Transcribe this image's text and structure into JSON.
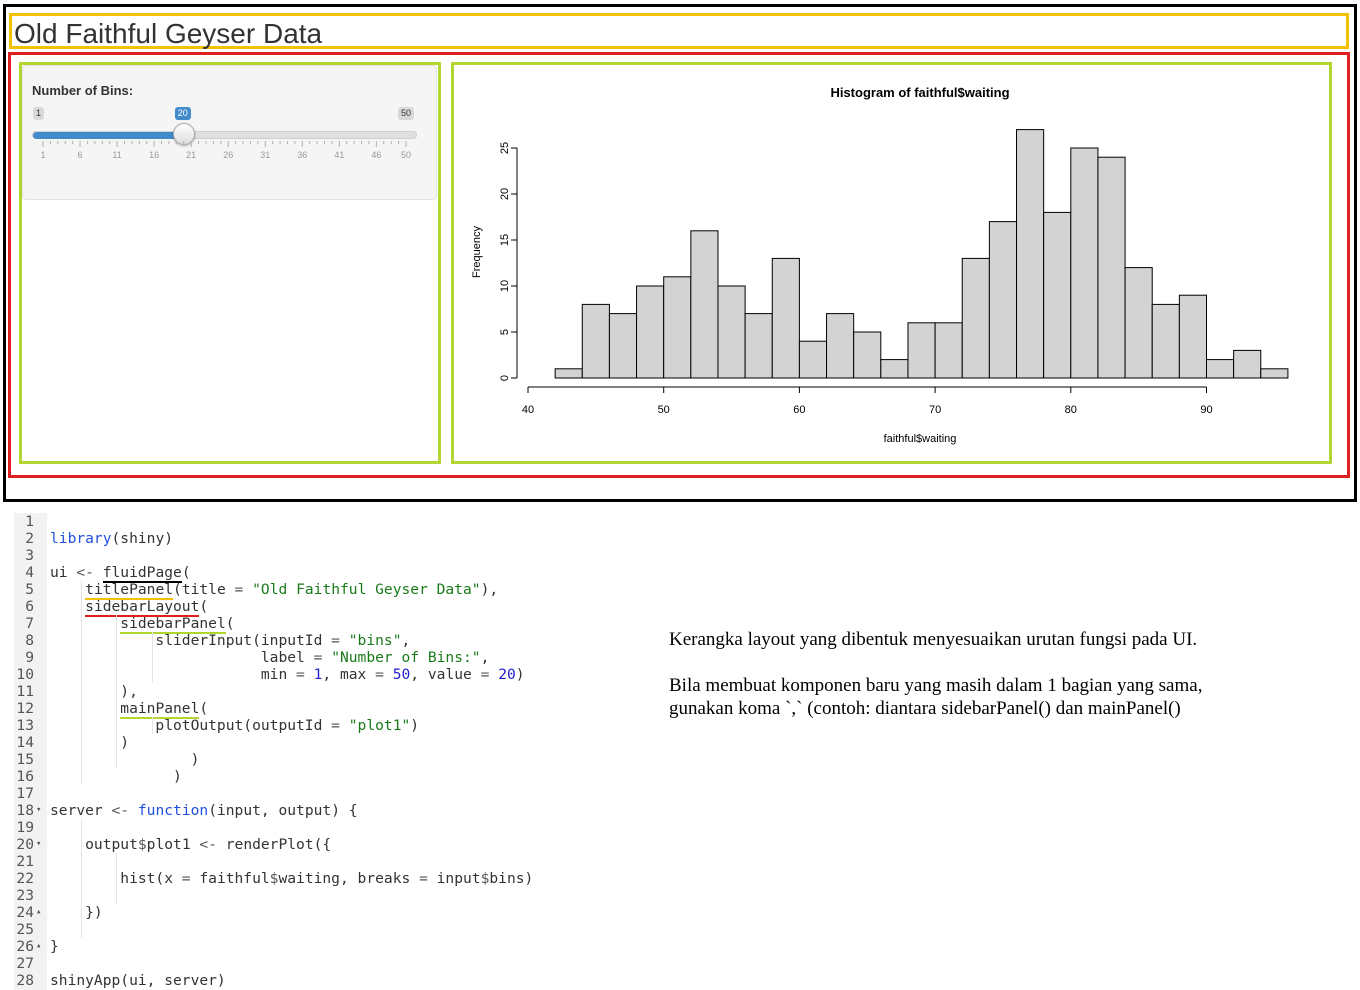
{
  "app": {
    "title": "Old Faithful Geyser Data"
  },
  "sidebar": {
    "slider": {
      "label": "Number of Bins:",
      "min": 1,
      "max": 50,
      "value": 20,
      "min_label": "1",
      "max_label": "50",
      "value_label": "20",
      "tick_labels": [
        "1",
        "6",
        "11",
        "16",
        "21",
        "26",
        "31",
        "36",
        "41",
        "46",
        "50"
      ]
    }
  },
  "chart_data": {
    "type": "bar",
    "title": "Histogram of faithful$waiting",
    "xlabel": "faithful$waiting",
    "ylabel": "Frequency",
    "bin_width": 2,
    "bin_start": 42,
    "values": [
      1,
      8,
      7,
      10,
      11,
      16,
      10,
      7,
      13,
      4,
      7,
      5,
      2,
      6,
      6,
      13,
      17,
      27,
      18,
      25,
      24,
      12,
      8,
      9,
      2,
      3,
      1
    ],
    "xlim": [
      40,
      96
    ],
    "ylim": [
      0,
      27
    ],
    "x_ticks": [
      40,
      50,
      60,
      70,
      80,
      90
    ],
    "y_ticks": [
      0,
      5,
      10,
      15,
      20,
      25
    ],
    "bar_color": "#d3d3d3"
  },
  "code": {
    "lines": [
      {
        "n": "1",
        "fold": "",
        "t": ""
      },
      {
        "n": "2",
        "fold": "",
        "t": "library(shiny)"
      },
      {
        "n": "3",
        "fold": "",
        "t": ""
      },
      {
        "n": "4",
        "fold": "",
        "t": "ui <- fluidPage("
      },
      {
        "n": "5",
        "fold": "",
        "t": "    titlePanel(title = \"Old Faithful Geyser Data\"),"
      },
      {
        "n": "6",
        "fold": "",
        "t": "    sidebarLayout("
      },
      {
        "n": "7",
        "fold": "",
        "t": "        sidebarPanel("
      },
      {
        "n": "8",
        "fold": "",
        "t": "            sliderInput(inputId = \"bins\","
      },
      {
        "n": "9",
        "fold": "",
        "t": "                        label = \"Number of Bins:\","
      },
      {
        "n": "10",
        "fold": "",
        "t": "                        min = 1, max = 50, value = 20)"
      },
      {
        "n": "11",
        "fold": "",
        "t": "        ),"
      },
      {
        "n": "12",
        "fold": "",
        "t": "        mainPanel("
      },
      {
        "n": "13",
        "fold": "",
        "t": "            plotOutput(outputId = \"plot1\")"
      },
      {
        "n": "14",
        "fold": "",
        "t": "        )"
      },
      {
        "n": "15",
        "fold": "",
        "t": "                )"
      },
      {
        "n": "16",
        "fold": "",
        "t": "              )"
      },
      {
        "n": "17",
        "fold": "",
        "t": ""
      },
      {
        "n": "18",
        "fold": "▾",
        "t": "server <- function(input, output) {"
      },
      {
        "n": "19",
        "fold": "",
        "t": ""
      },
      {
        "n": "20",
        "fold": "▾",
        "t": "    output$plot1 <- renderPlot({"
      },
      {
        "n": "21",
        "fold": "",
        "t": ""
      },
      {
        "n": "22",
        "fold": "",
        "t": "        hist(x = faithful$waiting, breaks = input$bins)"
      },
      {
        "n": "23",
        "fold": "",
        "t": ""
      },
      {
        "n": "24",
        "fold": "▴",
        "t": "    })"
      },
      {
        "n": "25",
        "fold": "",
        "t": ""
      },
      {
        "n": "26",
        "fold": "▴",
        "t": "}"
      },
      {
        "n": "27",
        "fold": "",
        "t": ""
      },
      {
        "n": "28",
        "fold": "",
        "t": "shinyApp(ui, server)"
      }
    ]
  },
  "notes": {
    "p1": "Kerangka layout yang dibentuk menyesuaikan urutan fungsi pada UI.",
    "p2a": "Bila membuat komponen baru yang masih dalam 1 bagian yang sama,",
    "p2b": "gunakan koma `,` (contoh: diantara sidebarPanel() dan mainPanel()"
  }
}
